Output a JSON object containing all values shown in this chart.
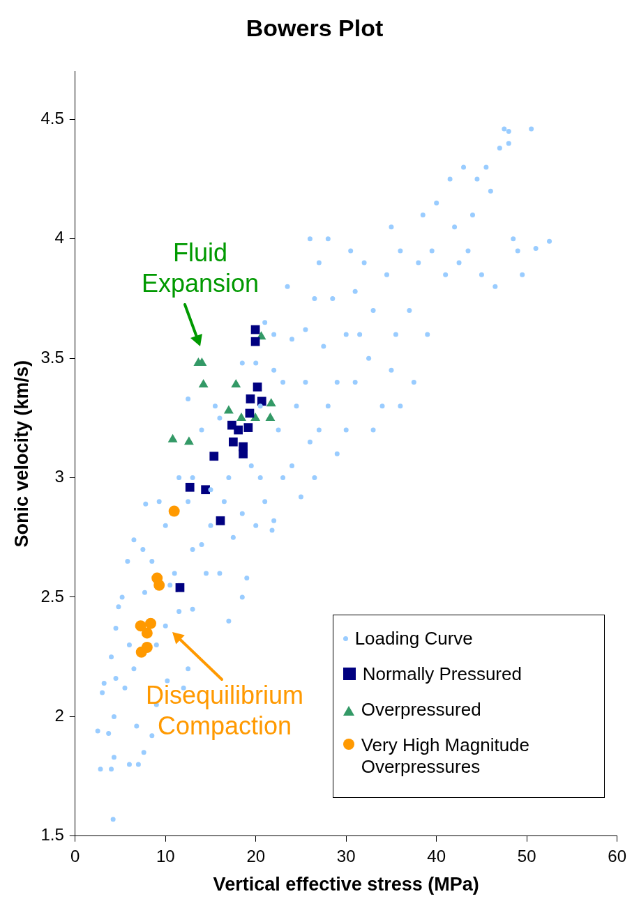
{
  "chart_data": {
    "type": "scatter",
    "title": "Bowers Plot",
    "xlabel": "Vertical effective stress (MPa)",
    "ylabel": "Sonic velocity (km/s)",
    "xlim": [
      0,
      60
    ],
    "xticks": [
      0,
      10,
      20,
      30,
      40,
      50,
      60
    ],
    "ylim": [
      1.5,
      4.7
    ],
    "yticks": [
      1.5,
      2,
      2.5,
      3,
      3.5,
      4,
      4.5
    ],
    "grid": false,
    "legend": "bottom right",
    "annotations": [
      "Fluid Expansion",
      "Disequilibrium Compaction"
    ],
    "series": [
      {
        "name": "Loading Curve",
        "color": "#99ccff",
        "marker": "circle",
        "x": [
          2.8,
          2.5,
          3,
          3.2,
          4.2,
          4,
          4.3,
          3.7,
          4.3,
          4.5,
          4,
          4.5,
          4.8,
          5.2,
          5.8,
          6.5,
          6,
          6.5,
          5.5,
          6,
          7,
          7.6,
          6.8,
          8.5,
          9,
          10.2,
          7.7,
          7.5,
          8.5,
          7.8,
          10,
          9.3,
          11,
          11.5,
          10,
          12,
          12.5,
          13,
          13,
          12.5,
          14,
          14.5,
          15,
          16,
          17,
          18.5,
          19,
          17.5,
          18.5,
          20,
          21,
          21.8,
          22,
          20.5,
          19.5,
          17,
          16,
          15.5,
          16.5,
          14,
          13,
          12.5,
          11.5,
          18.5,
          20,
          22,
          22.5,
          23,
          24,
          24.5,
          25,
          26,
          26.5,
          27,
          28,
          29,
          25.5,
          25.5,
          26.5,
          27,
          28,
          27.5,
          30,
          30,
          31,
          31,
          32,
          32.5,
          33,
          33,
          34,
          34.5,
          35,
          35.5,
          36,
          36,
          37,
          37.5,
          38,
          38.5,
          39,
          39.5,
          40,
          41,
          41.5,
          42,
          42.5,
          43,
          43.5,
          44,
          44.5,
          45,
          45.5,
          46,
          46.5,
          47,
          47.5,
          48,
          48,
          48.5,
          49,
          50.5,
          51,
          52.5,
          49.5,
          24,
          23,
          21,
          23.5,
          26,
          28.5,
          30.5,
          29,
          31.5,
          35,
          20.5,
          22,
          15,
          10.5,
          9
        ],
        "values": [
          1.78,
          1.94,
          2.1,
          2.14,
          1.57,
          1.78,
          1.83,
          1.93,
          2,
          2.16,
          2.25,
          2.37,
          2.46,
          2.5,
          2.65,
          2.74,
          2.3,
          2.2,
          2.12,
          1.8,
          1.8,
          1.85,
          1.96,
          1.92,
          2.05,
          2.15,
          2.52,
          2.7,
          2.65,
          2.89,
          2.8,
          2.9,
          2.6,
          2.44,
          2.38,
          2.12,
          2.2,
          2.45,
          2.7,
          2.9,
          2.72,
          2.6,
          2.8,
          2.6,
          2.4,
          2.5,
          2.58,
          2.75,
          2.85,
          2.8,
          2.9,
          2.78,
          2.82,
          3,
          3.05,
          3,
          3.25,
          3.3,
          2.9,
          3.2,
          3,
          3.33,
          3,
          3.48,
          3.48,
          3.6,
          3.2,
          3,
          3.05,
          3.3,
          2.92,
          3.15,
          3,
          3.2,
          3.3,
          3.4,
          3.4,
          3.62,
          3.75,
          3.9,
          4,
          3.55,
          3.6,
          3.2,
          3.78,
          3.4,
          3.9,
          3.5,
          3.7,
          3.2,
          3.3,
          3.85,
          4.05,
          3.6,
          3.95,
          3.3,
          3.7,
          3.4,
          3.9,
          4.1,
          3.6,
          3.95,
          4.15,
          3.85,
          4.25,
          4.05,
          3.9,
          4.3,
          3.95,
          4.1,
          4.25,
          3.85,
          4.3,
          4.2,
          3.8,
          4.38,
          4.46,
          4.45,
          4.4,
          4,
          3.95,
          4.46,
          3.96,
          3.99,
          3.85,
          3.58,
          3.4,
          3.65,
          3.8,
          4,
          3.75,
          3.95,
          3.1,
          3.6,
          3.45,
          3.3,
          3.45,
          2.95,
          2.55,
          2.3
        ]
      },
      {
        "name": "Normally Pressured",
        "color": "#000080",
        "marker": "square",
        "x": [
          19.95,
          19.95,
          20.18,
          19.4,
          20.66,
          19.32,
          17.35,
          19.16,
          18.06,
          17.5,
          18.6,
          18.6,
          15.37,
          12.7,
          14.43,
          16.08,
          11.6
        ],
        "values": [
          3.62,
          3.57,
          3.38,
          3.33,
          3.32,
          3.27,
          3.22,
          3.21,
          3.2,
          3.15,
          3.13,
          3.1,
          3.09,
          2.96,
          2.95,
          2.82,
          2.54
        ]
      },
      {
        "name": "Overpressured",
        "color": "#339966",
        "marker": "triangle",
        "x": [
          13.64,
          14.03,
          14.2,
          17.8,
          17,
          21.7,
          21.6,
          18.4,
          19.95,
          20.6,
          10.8,
          12.6
        ],
        "values": [
          3.48,
          3.48,
          3.39,
          3.39,
          3.28,
          3.31,
          3.25,
          3.25,
          3.25,
          3.59,
          3.16,
          3.15
        ]
      },
      {
        "name": "Very High Magnitude Overpressures",
        "color": "#ff9900",
        "marker": "circle",
        "x": [
          10.96,
          9.07,
          9.3,
          7.25,
          8.36,
          7.96,
          7.57,
          7.33,
          7.96
        ],
        "values": [
          2.86,
          2.58,
          2.55,
          2.38,
          2.39,
          2.35,
          null,
          2.27,
          2.29
        ]
      }
    ]
  }
}
